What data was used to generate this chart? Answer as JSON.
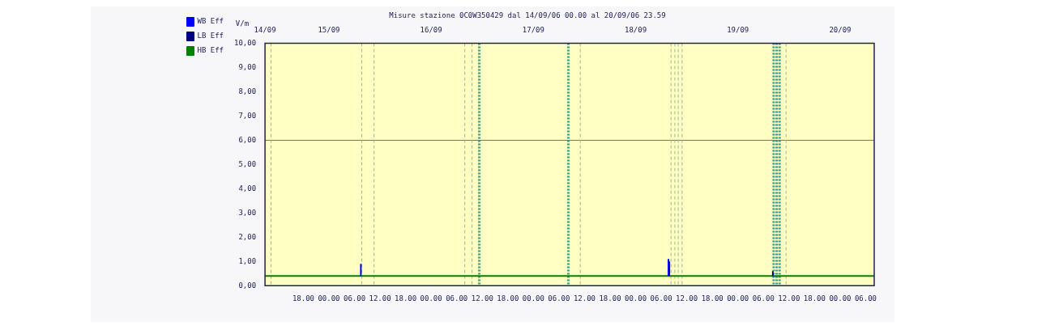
{
  "chart_data": {
    "type": "line",
    "title": "Misure stazione 0C0W350429 dal 14/09/06 00.00 al 20/09/06 23.59",
    "ylabel": "V/m",
    "xlim": [
      "--09-14T09:00",
      "--09-20T08:00"
    ],
    "xticks": [
      {
        "value": "--09-14T18:00",
        "label": "18.00"
      },
      {
        "value": "--09-15T00:00",
        "label": "00.00"
      },
      {
        "value": "--09-15T06:00",
        "label": "06.00"
      },
      {
        "value": "--09-15T12:00",
        "label": "12.00"
      },
      {
        "value": "--09-15T18:00",
        "label": "18.00"
      },
      {
        "value": "--09-16T00:00",
        "label": "00.00"
      },
      {
        "value": "--09-16T06:00",
        "label": "06.00"
      },
      {
        "value": "--09-16T12:00",
        "label": "12.00"
      },
      {
        "value": "--09-16T18:00",
        "label": "18.00"
      },
      {
        "value": "--09-17T00:00",
        "label": "00.00"
      },
      {
        "value": "--09-17T06:00",
        "label": "06.00"
      },
      {
        "value": "--09-17T12:00",
        "label": "12.00"
      },
      {
        "value": "--09-17T18:00",
        "label": "18.00"
      },
      {
        "value": "--09-18T00:00",
        "label": "00.00"
      },
      {
        "value": "--09-18T06:00",
        "label": "06.00"
      },
      {
        "value": "--09-18T12:00",
        "label": "12.00"
      },
      {
        "value": "--09-18T18:00",
        "label": "18.00"
      },
      {
        "value": "--09-19T00:00",
        "label": "00.00"
      },
      {
        "value": "--09-19T06:00",
        "label": "06.00"
      },
      {
        "value": "--09-19T12:00",
        "label": "12.00"
      },
      {
        "value": "--09-19T18:00",
        "label": "18.00"
      },
      {
        "value": "--09-20T00:00",
        "label": "00.00"
      },
      {
        "value": "--09-20T06:00",
        "label": "06.00"
      }
    ],
    "x2lim": [
      "--09-14T09:00",
      "--09-20T08:00"
    ],
    "x2ticks": [
      {
        "value": "--09-14T09:00",
        "label": "14/09"
      },
      {
        "value": "--09-15",
        "label": "15/09"
      },
      {
        "value": "--09-16",
        "label": "16/09"
      },
      {
        "value": "--09-17",
        "label": "17/09"
      },
      {
        "value": "--09-18",
        "label": "18/09"
      },
      {
        "value": "--09-19",
        "label": "19/09"
      },
      {
        "value": "--09-20",
        "label": "20/09"
      }
    ],
    "ylim": [
      0,
      10
    ],
    "yticks": [
      {
        "value": 0,
        "label": "0,00"
      },
      {
        "value": 1,
        "label": "1,00"
      },
      {
        "value": 2,
        "label": "2,00"
      },
      {
        "value": 3,
        "label": "3,00"
      },
      {
        "value": 4,
        "label": "4,00"
      },
      {
        "value": 5,
        "label": "5,00"
      },
      {
        "value": 6,
        "label": "6,00"
      },
      {
        "value": 7,
        "label": "7,00"
      },
      {
        "value": 8,
        "label": "8,00"
      },
      {
        "value": 9,
        "label": "9,00"
      },
      {
        "value": 10,
        "label": "10,00"
      }
    ],
    "legend": "left",
    "line_style": "solid",
    "series": [
      {
        "name": "WB Eff",
        "color": "#0000ff",
        "x": [
          "--09-15T07:30",
          "--09-15T07:30",
          "--09-16T22:00",
          "--09-18T07:42",
          "--09-18T07:42"
        ],
        "values": [
          0.4,
          0.9,
          null,
          0.4,
          1.1
        ]
      },
      {
        "name": "LB Eff",
        "color": "#000080",
        "x": [
          "--09-18T07:54",
          "--09-18T07:54",
          "--09-18T20:00",
          "--09-19T08:12",
          "--09-19T08:12"
        ],
        "values": [
          0.4,
          1.0,
          null,
          0.4,
          0.6
        ]
      },
      {
        "name": "HB Eff",
        "color": "#008000",
        "x": [
          "--09-14T09:00",
          "--09-20T08:00"
        ],
        "values": [
          0.4,
          0.4
        ]
      }
    ],
    "ref_lines": [
      {
        "axis": "y",
        "value": 6,
        "color": "#808000",
        "line_style": "solid"
      },
      {
        "axis": "x",
        "value": "--09-14T10:24",
        "color": "#99bb88",
        "line_style": "dashed"
      },
      {
        "axis": "x",
        "value": "--09-15T07:42",
        "color": "#99bb88",
        "line_style": "dashed"
      },
      {
        "axis": "x",
        "value": "--09-15T10:36",
        "color": "#99bb88",
        "line_style": "dashed"
      },
      {
        "axis": "x",
        "value": "--09-16T07:54",
        "color": "#99bb88",
        "line_style": "dashed"
      },
      {
        "axis": "x",
        "value": "--09-16T09:36",
        "color": "#99bb88",
        "line_style": "dashed"
      },
      {
        "axis": "x",
        "value": "--09-16T11:18",
        "color": "#339988",
        "line_style": "dotted"
      },
      {
        "axis": "x",
        "value": "--09-17T08:12",
        "color": "#339988",
        "line_style": "dotted"
      },
      {
        "axis": "x",
        "value": "--09-17T11:00",
        "color": "#99bb88",
        "line_style": "dashed"
      },
      {
        "axis": "x",
        "value": "--09-18T08:18",
        "color": "#99bb88",
        "line_style": "dashed"
      },
      {
        "axis": "x",
        "value": "--09-18T09:12",
        "color": "#99bb88",
        "line_style": "dashed"
      },
      {
        "axis": "x",
        "value": "--09-18T10:00",
        "color": "#99bb88",
        "line_style": "dashed"
      },
      {
        "axis": "x",
        "value": "--09-18T10:54",
        "color": "#99bb88",
        "line_style": "dashed"
      },
      {
        "axis": "x",
        "value": "--09-19T08:24",
        "color": "#339988",
        "line_style": "dotted"
      },
      {
        "axis": "x",
        "value": "--09-19T09:06",
        "color": "#339988",
        "line_style": "dotted"
      },
      {
        "axis": "x",
        "value": "--09-19T09:48",
        "color": "#339988",
        "line_style": "dotted"
      },
      {
        "axis": "x",
        "value": "--09-19T11:18",
        "color": "#99bb88",
        "line_style": "dashed"
      }
    ]
  }
}
